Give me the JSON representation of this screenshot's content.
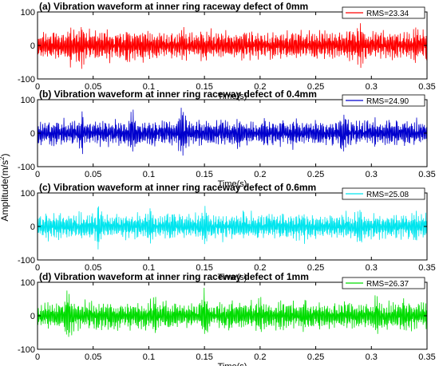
{
  "figure": {
    "ylabel_main": "Amplitude(m/s",
    "ylabel_sup": "2",
    "ylabel_close": ")"
  },
  "chart_data": [
    {
      "type": "line",
      "title": "(a) Vibration waveform at inner ring raceway defect of 0mm",
      "xlabel": "Time(s)",
      "ylabel": "Amplitude(m/s2)",
      "xlim": [
        0,
        0.35
      ],
      "ylim": [
        -100,
        100
      ],
      "xticks": [
        "0",
        "0.05",
        "0.1",
        "0.15",
        "0.2",
        "0.25",
        "0.3",
        "0.35"
      ],
      "yticks": [
        "100",
        "0",
        "-100"
      ],
      "legend": "top-right",
      "series": [
        {
          "name": "RMS=23.34",
          "color": "#ff0000",
          "seed": 11,
          "peak": 68,
          "bursts": [
            [
              0.03,
              72
            ],
            [
              0.04,
              78
            ],
            [
              0.055,
              55
            ],
            [
              0.08,
              70
            ],
            [
              0.095,
              65
            ],
            [
              0.13,
              70
            ],
            [
              0.185,
              62
            ],
            [
              0.23,
              58
            ],
            [
              0.29,
              80
            ],
            [
              0.34,
              70
            ]
          ]
        }
      ]
    },
    {
      "type": "line",
      "title": "(b) Vibration waveform at inner ring raceway defect of 0.4mm",
      "xlabel": "Time(s)",
      "ylabel": "Amplitude(m/s2)",
      "xlim": [
        0,
        0.35
      ],
      "ylim": [
        -100,
        100
      ],
      "xticks": [
        "0",
        "0.05",
        "0.1",
        "0.15",
        "0.2",
        "0.25",
        "0.3",
        "0.35"
      ],
      "yticks": [
        "100",
        "0",
        "-100"
      ],
      "legend": "top-right",
      "series": [
        {
          "name": "RMS=24.90",
          "color": "#0000cd",
          "seed": 23,
          "peak": 60,
          "bursts": [
            [
              0.04,
              70
            ],
            [
              0.085,
              80
            ],
            [
              0.13,
              98
            ],
            [
              0.18,
              70
            ],
            [
              0.23,
              60
            ],
            [
              0.275,
              80
            ],
            [
              0.33,
              55
            ]
          ]
        }
      ]
    },
    {
      "type": "line",
      "title": "(c) Vibration waveform at inner ring raceway defect of 0.6mm",
      "xlabel": "Time(s)",
      "ylabel": "Amplitude(m/s2)",
      "xlim": [
        0,
        0.35
      ],
      "ylim": [
        -100,
        100
      ],
      "xticks": [
        "0",
        "0.05",
        "0.1",
        "0.15",
        "0.2",
        "0.25",
        "0.3",
        "0.35"
      ],
      "yticks": [
        "100",
        "0",
        "-100"
      ],
      "legend": "top-right",
      "series": [
        {
          "name": "RMS=25.08",
          "color": "#00e5ee",
          "seed": 37,
          "peak": 62,
          "bursts": [
            [
              0.008,
              60
            ],
            [
              0.055,
              85
            ],
            [
              0.1,
              75
            ],
            [
              0.15,
              75
            ],
            [
              0.185,
              65
            ],
            [
              0.24,
              60
            ],
            [
              0.29,
              75
            ],
            [
              0.34,
              55
            ]
          ]
        }
      ]
    },
    {
      "type": "line",
      "title": "(d) Vibration waveform at inner ring raceway defect of 1mm",
      "xlabel": "Time(s)",
      "ylabel": "Amplitude(m/s2)",
      "xlim": [
        0,
        0.35
      ],
      "ylim": [
        -100,
        100
      ],
      "xticks": [
        "0",
        "0.05",
        "0.1",
        "0.15",
        "0.2",
        "0.25",
        "0.3",
        "0.35"
      ],
      "yticks": [
        "100",
        "0",
        "-100"
      ],
      "legend": "top-right",
      "series": [
        {
          "name": "RMS=26.37",
          "color": "#00dd00",
          "seed": 53,
          "peak": 65,
          "bursts": [
            [
              0.028,
              95
            ],
            [
              0.065,
              60
            ],
            [
              0.105,
              70
            ],
            [
              0.15,
              92
            ],
            [
              0.2,
              65
            ],
            [
              0.24,
              60
            ],
            [
              0.305,
              80
            ],
            [
              0.33,
              65
            ]
          ]
        }
      ]
    }
  ]
}
